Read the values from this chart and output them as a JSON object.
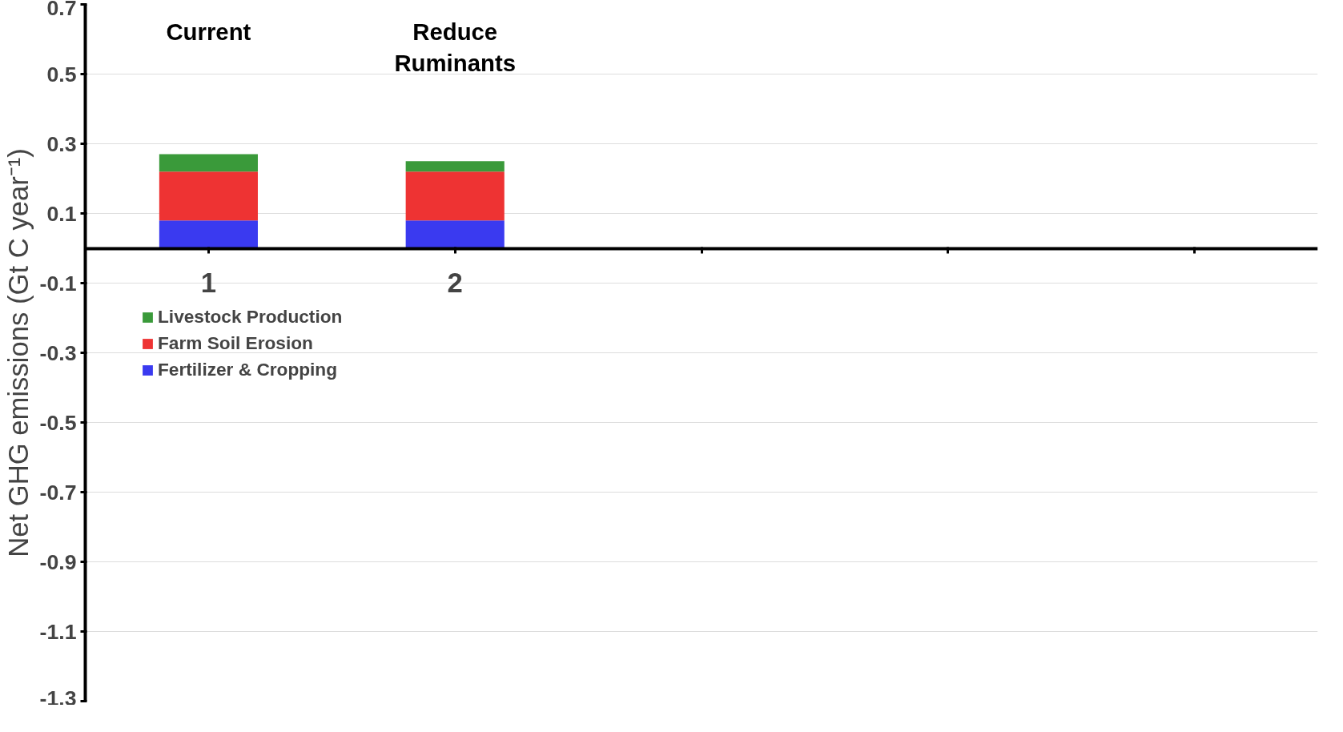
{
  "chart_data": {
    "type": "bar",
    "stacked": true,
    "ylabel": "Net GHG emissions (Gt C year⁻¹)",
    "categories": [
      "1",
      "2",
      null,
      null,
      null
    ],
    "series": [
      {
        "name": "Fertilizer & Cropping",
        "color": "#3a3af0",
        "values": [
          0.08,
          0.08,
          null,
          null,
          null
        ]
      },
      {
        "name": "Farm Soil Erosion",
        "color": "#ee3333",
        "values": [
          0.14,
          0.14,
          null,
          null,
          null
        ]
      },
      {
        "name": "Livestock Production",
        "color": "#3a9a3a",
        "values": [
          0.05,
          0.03,
          null,
          null,
          null
        ]
      }
    ],
    "ylim": [
      -1.3,
      0.7
    ],
    "yticks": [
      0.7,
      0.5,
      0.3,
      0.1,
      -0.1,
      -0.3,
      -0.5,
      -0.7,
      -0.9,
      -1.1,
      -1.3
    ],
    "annotations": [
      "Current",
      "Reduce\nRuminants"
    ],
    "grid": "y",
    "legend": "left"
  }
}
